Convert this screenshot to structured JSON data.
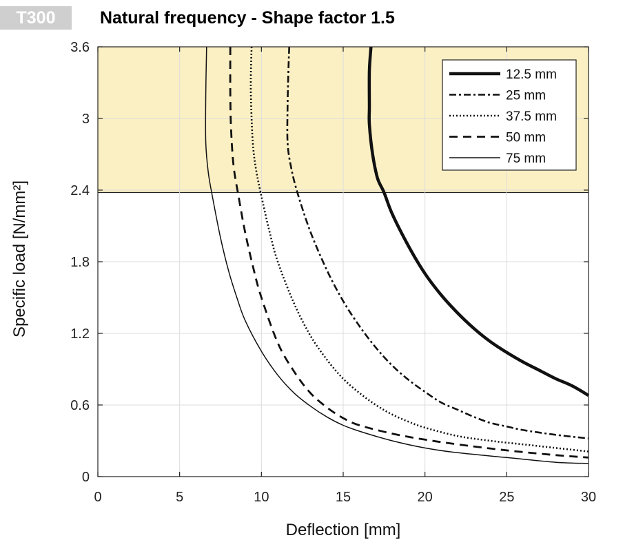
{
  "badge": "T300",
  "chart_data": {
    "type": "line",
    "title": "Natural frequency - Shape factor 1.5",
    "xlabel": "Deflection  [mm]",
    "ylabel": "Specific load [N/mm²]",
    "xlim": [
      0,
      30
    ],
    "ylim": [
      0,
      3.6
    ],
    "xticks": [
      0,
      5,
      10,
      15,
      20,
      25,
      30
    ],
    "yticks": [
      0,
      0.6,
      1.2,
      1.8,
      2.4,
      3,
      3.6
    ],
    "xtick_labels": [
      "0",
      "5",
      "10",
      "15",
      "20",
      "25",
      "30"
    ],
    "ytick_labels": [
      "0",
      "0.6",
      "1.2",
      "1.8",
      "2.4",
      "3",
      "3.6"
    ],
    "grid": true,
    "legend_position": "top-right",
    "highlight_band": {
      "y_from": 2.38,
      "y_to": 3.6,
      "color": "#fbf0c4"
    },
    "series": [
      {
        "name": "12.5 mm",
        "style": "solid-thick",
        "points": [
          [
            16.7,
            3.6
          ],
          [
            16.6,
            3.4
          ],
          [
            16.6,
            3.1
          ],
          [
            16.6,
            2.95
          ],
          [
            16.8,
            2.7
          ],
          [
            17.1,
            2.5
          ],
          [
            17.5,
            2.38
          ],
          [
            18.0,
            2.2
          ],
          [
            19.0,
            1.93
          ],
          [
            20.0,
            1.7
          ],
          [
            21.0,
            1.52
          ],
          [
            22.0,
            1.37
          ],
          [
            23.0,
            1.24
          ],
          [
            24.0,
            1.13
          ],
          [
            25.0,
            1.04
          ],
          [
            26.0,
            0.96
          ],
          [
            27.0,
            0.89
          ],
          [
            28.0,
            0.82
          ],
          [
            29.0,
            0.76
          ],
          [
            30.0,
            0.68
          ]
        ]
      },
      {
        "name": "25 mm",
        "style": "dash-dot",
        "points": [
          [
            11.7,
            3.6
          ],
          [
            11.65,
            3.4
          ],
          [
            11.6,
            3.1
          ],
          [
            11.6,
            2.8
          ],
          [
            11.8,
            2.6
          ],
          [
            12.2,
            2.38
          ],
          [
            13.0,
            2.05
          ],
          [
            14.0,
            1.73
          ],
          [
            15.0,
            1.47
          ],
          [
            16.0,
            1.26
          ],
          [
            17.0,
            1.08
          ],
          [
            18.0,
            0.93
          ],
          [
            19.0,
            0.81
          ],
          [
            20.0,
            0.71
          ],
          [
            21.0,
            0.62
          ],
          [
            22.0,
            0.56
          ],
          [
            23.0,
            0.5
          ],
          [
            24.0,
            0.45
          ],
          [
            25.0,
            0.42
          ],
          [
            26.0,
            0.39
          ],
          [
            28.0,
            0.35
          ],
          [
            30.0,
            0.32
          ]
        ]
      },
      {
        "name": "37.5 mm",
        "style": "dotted",
        "points": [
          [
            9.4,
            3.6
          ],
          [
            9.35,
            3.3
          ],
          [
            9.4,
            3.0
          ],
          [
            9.5,
            2.75
          ],
          [
            9.7,
            2.55
          ],
          [
            10.0,
            2.35
          ],
          [
            10.5,
            2.05
          ],
          [
            11.0,
            1.8
          ],
          [
            12.0,
            1.45
          ],
          [
            13.0,
            1.18
          ],
          [
            14.0,
            0.98
          ],
          [
            15.0,
            0.82
          ],
          [
            16.0,
            0.7
          ],
          [
            17.0,
            0.6
          ],
          [
            18.0,
            0.52
          ],
          [
            19.0,
            0.46
          ],
          [
            20.0,
            0.41
          ],
          [
            22.0,
            0.34
          ],
          [
            24.0,
            0.3
          ],
          [
            26.0,
            0.27
          ],
          [
            28.0,
            0.24
          ],
          [
            30.0,
            0.21
          ]
        ]
      },
      {
        "name": "50 mm",
        "style": "dashed",
        "points": [
          [
            8.1,
            3.6
          ],
          [
            8.1,
            3.2
          ],
          [
            8.15,
            2.9
          ],
          [
            8.3,
            2.6
          ],
          [
            8.6,
            2.35
          ],
          [
            9.0,
            2.05
          ],
          [
            9.5,
            1.75
          ],
          [
            10.0,
            1.5
          ],
          [
            11.0,
            1.12
          ],
          [
            12.0,
            0.88
          ],
          [
            13.0,
            0.7
          ],
          [
            14.0,
            0.58
          ],
          [
            15.0,
            0.49
          ],
          [
            16.0,
            0.43
          ],
          [
            18.0,
            0.36
          ],
          [
            20.0,
            0.31
          ],
          [
            22.0,
            0.27
          ],
          [
            25.0,
            0.22
          ],
          [
            28.0,
            0.18
          ],
          [
            30.0,
            0.16
          ]
        ]
      },
      {
        "name": "75 mm",
        "style": "solid-thin",
        "points": [
          [
            6.65,
            3.6
          ],
          [
            6.6,
            3.2
          ],
          [
            6.6,
            2.8
          ],
          [
            6.75,
            2.55
          ],
          [
            7.0,
            2.35
          ],
          [
            7.5,
            2.0
          ],
          [
            8.0,
            1.72
          ],
          [
            8.5,
            1.5
          ],
          [
            9.0,
            1.31
          ],
          [
            10.0,
            1.05
          ],
          [
            11.0,
            0.85
          ],
          [
            12.0,
            0.7
          ],
          [
            13.0,
            0.59
          ],
          [
            14.0,
            0.5
          ],
          [
            15.0,
            0.43
          ],
          [
            16.0,
            0.38
          ],
          [
            18.0,
            0.3
          ],
          [
            20.0,
            0.24
          ],
          [
            22.0,
            0.2
          ],
          [
            25.0,
            0.16
          ],
          [
            28.0,
            0.12
          ],
          [
            30.0,
            0.11
          ]
        ]
      }
    ]
  }
}
